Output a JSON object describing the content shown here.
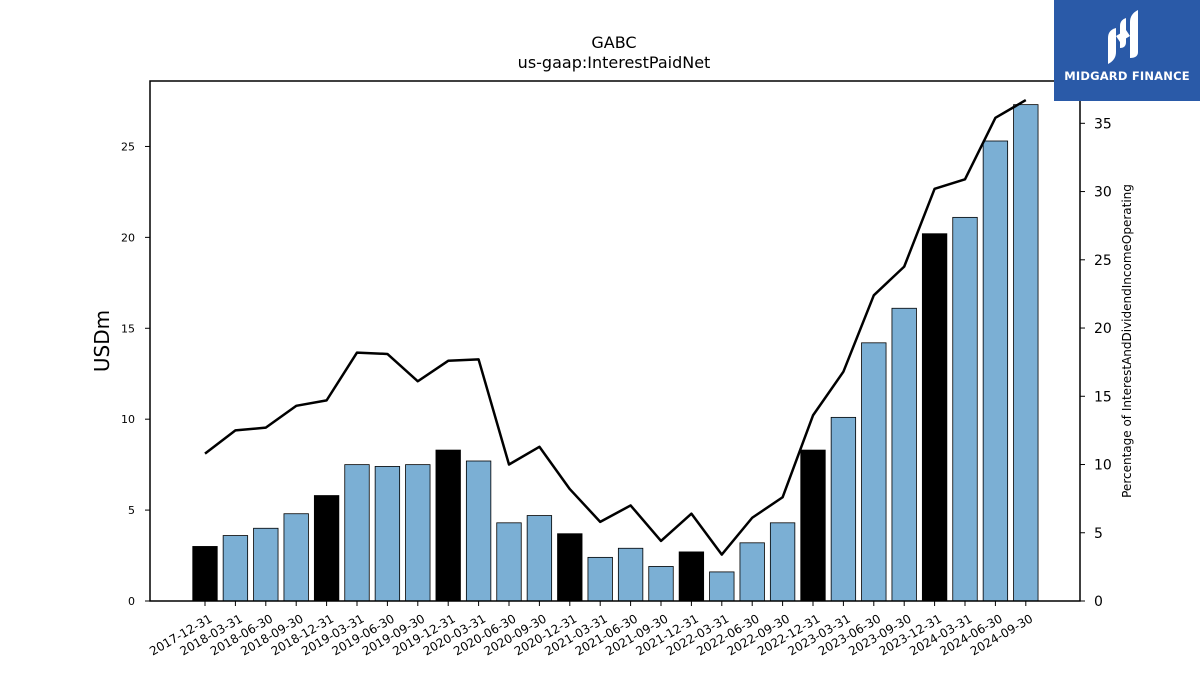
{
  "chart_data": {
    "type": "bar",
    "title": "GABC",
    "subtitle": "us-gaap:InterestPaidNet",
    "ylabel": "USDm",
    "y2label": "Percentage of InterestAndDividendIncomeOperating",
    "ylim": [
      0,
      28.6
    ],
    "y2lim": [
      0,
      38.1
    ],
    "yticks": [
      0,
      5,
      10,
      15,
      20,
      25
    ],
    "y2ticks": [
      0,
      5,
      10,
      15,
      20,
      25,
      30,
      35
    ],
    "categories": [
      "2017-12-31",
      "2018-03-31",
      "2018-06-30",
      "2018-09-30",
      "2018-12-31",
      "2019-03-31",
      "2019-06-30",
      "2019-09-30",
      "2019-12-31",
      "2020-03-31",
      "2020-06-30",
      "2020-09-30",
      "2020-12-31",
      "2021-03-31",
      "2021-06-30",
      "2021-09-30",
      "2021-12-31",
      "2022-03-31",
      "2022-06-30",
      "2022-09-30",
      "2022-12-31",
      "2023-03-31",
      "2023-06-30",
      "2023-09-30",
      "2023-12-31",
      "2024-03-31",
      "2024-06-30",
      "2024-09-30"
    ],
    "values": [
      3.0,
      3.6,
      4.0,
      4.8,
      5.8,
      7.5,
      7.4,
      7.5,
      8.3,
      7.7,
      4.3,
      4.7,
      3.7,
      2.4,
      2.9,
      1.9,
      2.7,
      1.6,
      3.2,
      4.3,
      8.3,
      10.1,
      14.2,
      16.1,
      20.2,
      21.1,
      25.3,
      27.3
    ],
    "bar_colors": [
      "#000000",
      "#7bafd4",
      "#7bafd4",
      "#7bafd4",
      "#000000",
      "#7bafd4",
      "#7bafd4",
      "#7bafd4",
      "#000000",
      "#7bafd4",
      "#7bafd4",
      "#7bafd4",
      "#000000",
      "#7bafd4",
      "#7bafd4",
      "#7bafd4",
      "#000000",
      "#7bafd4",
      "#7bafd4",
      "#7bafd4",
      "#000000",
      "#7bafd4",
      "#7bafd4",
      "#7bafd4",
      "#000000",
      "#7bafd4",
      "#7bafd4",
      "#7bafd4"
    ],
    "line_values": [
      10.8,
      12.5,
      12.7,
      14.3,
      14.7,
      18.2,
      18.1,
      16.1,
      17.6,
      17.7,
      10.0,
      11.3,
      8.2,
      5.8,
      7.0,
      4.4,
      6.4,
      3.4,
      6.1,
      7.6,
      13.6,
      16.8,
      22.4,
      24.5,
      30.2,
      30.9,
      35.4,
      36.7
    ],
    "line_color": "#000000"
  },
  "logo": {
    "text": "MIDGARD FINANCE",
    "background": "#2a5aa8"
  }
}
